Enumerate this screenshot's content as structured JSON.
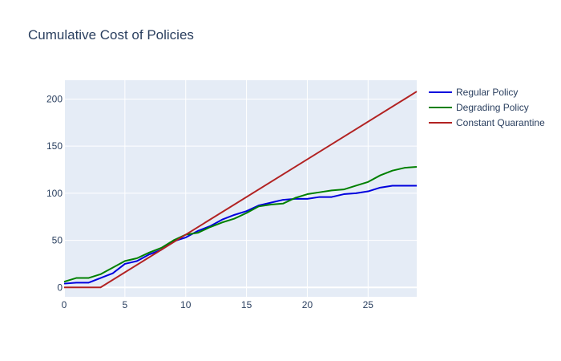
{
  "chart_data": {
    "type": "line",
    "title": "Cumulative Cost of Policies",
    "xlabel": "",
    "ylabel": "",
    "xlim": [
      0,
      29
    ],
    "ylim": [
      -10,
      220
    ],
    "xticks": [
      0,
      5,
      10,
      15,
      20,
      25
    ],
    "yticks": [
      0,
      50,
      100,
      150,
      200
    ],
    "grid": true,
    "legend_position": "right",
    "background": "#e5ecf6",
    "series": [
      {
        "name": "Regular Policy",
        "color": "#0000dd",
        "x": [
          0,
          1,
          2,
          3,
          4,
          5,
          6,
          7,
          8,
          9,
          10,
          11,
          12,
          13,
          14,
          15,
          16,
          17,
          18,
          19,
          20,
          21,
          22,
          23,
          24,
          25,
          26,
          27,
          28,
          29
        ],
        "y": [
          4,
          5,
          5,
          10,
          15,
          25,
          28,
          35,
          40,
          49,
          53,
          60,
          65,
          72,
          77,
          81,
          87,
          90,
          93,
          94,
          94,
          96,
          96,
          99,
          100,
          102,
          106,
          108,
          108,
          108
        ]
      },
      {
        "name": "Degrading Policy",
        "color": "#008000",
        "x": [
          0,
          1,
          2,
          3,
          4,
          5,
          6,
          7,
          8,
          9,
          10,
          11,
          12,
          13,
          14,
          15,
          16,
          17,
          18,
          19,
          20,
          21,
          22,
          23,
          24,
          25,
          26,
          27,
          28,
          29
        ],
        "y": [
          6,
          10,
          10,
          14,
          21,
          28,
          31,
          37,
          42,
          50,
          56,
          58,
          64,
          69,
          73,
          79,
          86,
          88,
          89,
          95,
          99,
          101,
          103,
          104,
          108,
          112,
          119,
          124,
          127,
          128
        ]
      },
      {
        "name": "Constant Quarantine",
        "color": "#b22222",
        "x": [
          0,
          1,
          2,
          3,
          29
        ],
        "y": [
          0,
          0,
          0,
          0,
          208
        ]
      }
    ]
  }
}
